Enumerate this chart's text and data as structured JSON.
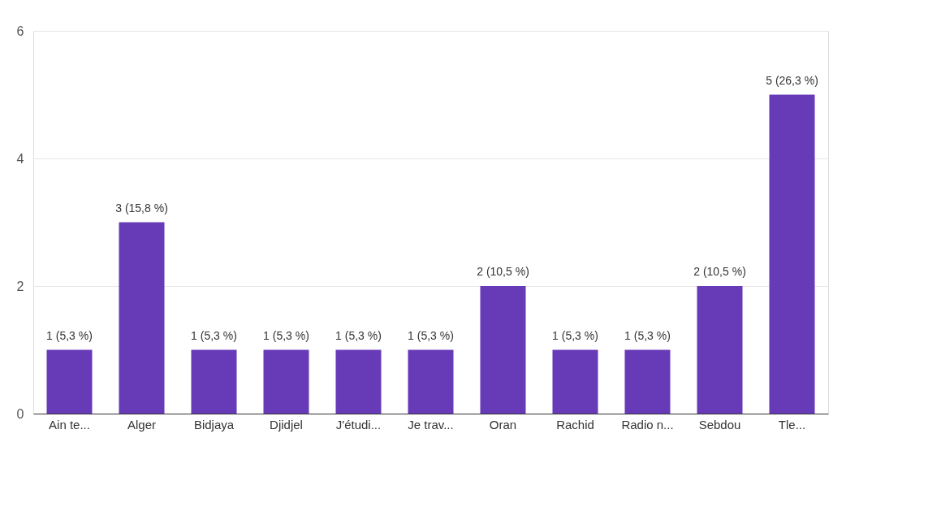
{
  "chart_data": {
    "type": "bar",
    "categories": [
      "Ain te...",
      "Alger",
      "Bidjaya",
      "Djidjel",
      "J'étudi...",
      "Je trav...",
      "Oran",
      "Rachid",
      "Radio n...",
      "Sebdou",
      "Tle..."
    ],
    "values": [
      1,
      3,
      1,
      1,
      1,
      1,
      2,
      1,
      1,
      2,
      5
    ],
    "value_labels": [
      "1 (5,3 %)",
      "3 (15,8 %)",
      "1 (5,3 %)",
      "1 (5,3 %)",
      "1 (5,3 %)",
      "1 (5,3 %)",
      "2 (10,5 %)",
      "1 (5,3 %)",
      "1 (5,3 %)",
      "2 (10,5 %)",
      "5 (26,3 %)"
    ],
    "color": "#673ab7",
    "ylim": [
      0,
      6
    ],
    "yticks": [
      0,
      2,
      4,
      6
    ],
    "grid": "y"
  }
}
